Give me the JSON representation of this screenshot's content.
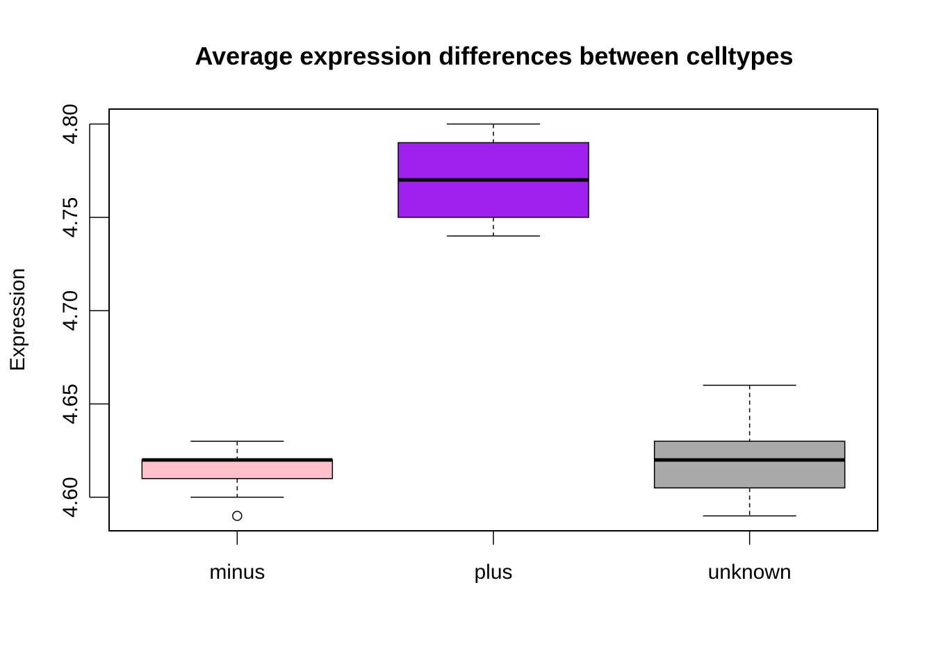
{
  "chart_data": {
    "type": "boxplot",
    "title": "Average expression differences between celltypes",
    "xlabel": "",
    "ylabel": "Expression",
    "ylim": [
      4.582,
      4.808
    ],
    "y_ticks": [
      "4.60",
      "4.65",
      "4.70",
      "4.75",
      "4.80"
    ],
    "y_tick_values": [
      4.6,
      4.65,
      4.7,
      4.75,
      4.8
    ],
    "grid": false,
    "legend": "none",
    "categories": [
      "minus",
      "plus",
      "unknown"
    ],
    "boxes": [
      {
        "category": "minus",
        "color": "#ffc0cb",
        "whisker_low": 4.6,
        "q1": 4.61,
        "median": 4.62,
        "q3": 4.62,
        "whisker_high": 4.63,
        "outliers": [
          4.59
        ]
      },
      {
        "category": "plus",
        "color": "#a020f0",
        "whisker_low": 4.74,
        "q1": 4.75,
        "median": 4.77,
        "q3": 4.79,
        "whisker_high": 4.8,
        "outliers": []
      },
      {
        "category": "unknown",
        "color": "#a9a9a9",
        "whisker_low": 4.59,
        "q1": 4.605,
        "median": 4.62,
        "q3": 4.63,
        "whisker_high": 4.66,
        "outliers": []
      }
    ]
  }
}
